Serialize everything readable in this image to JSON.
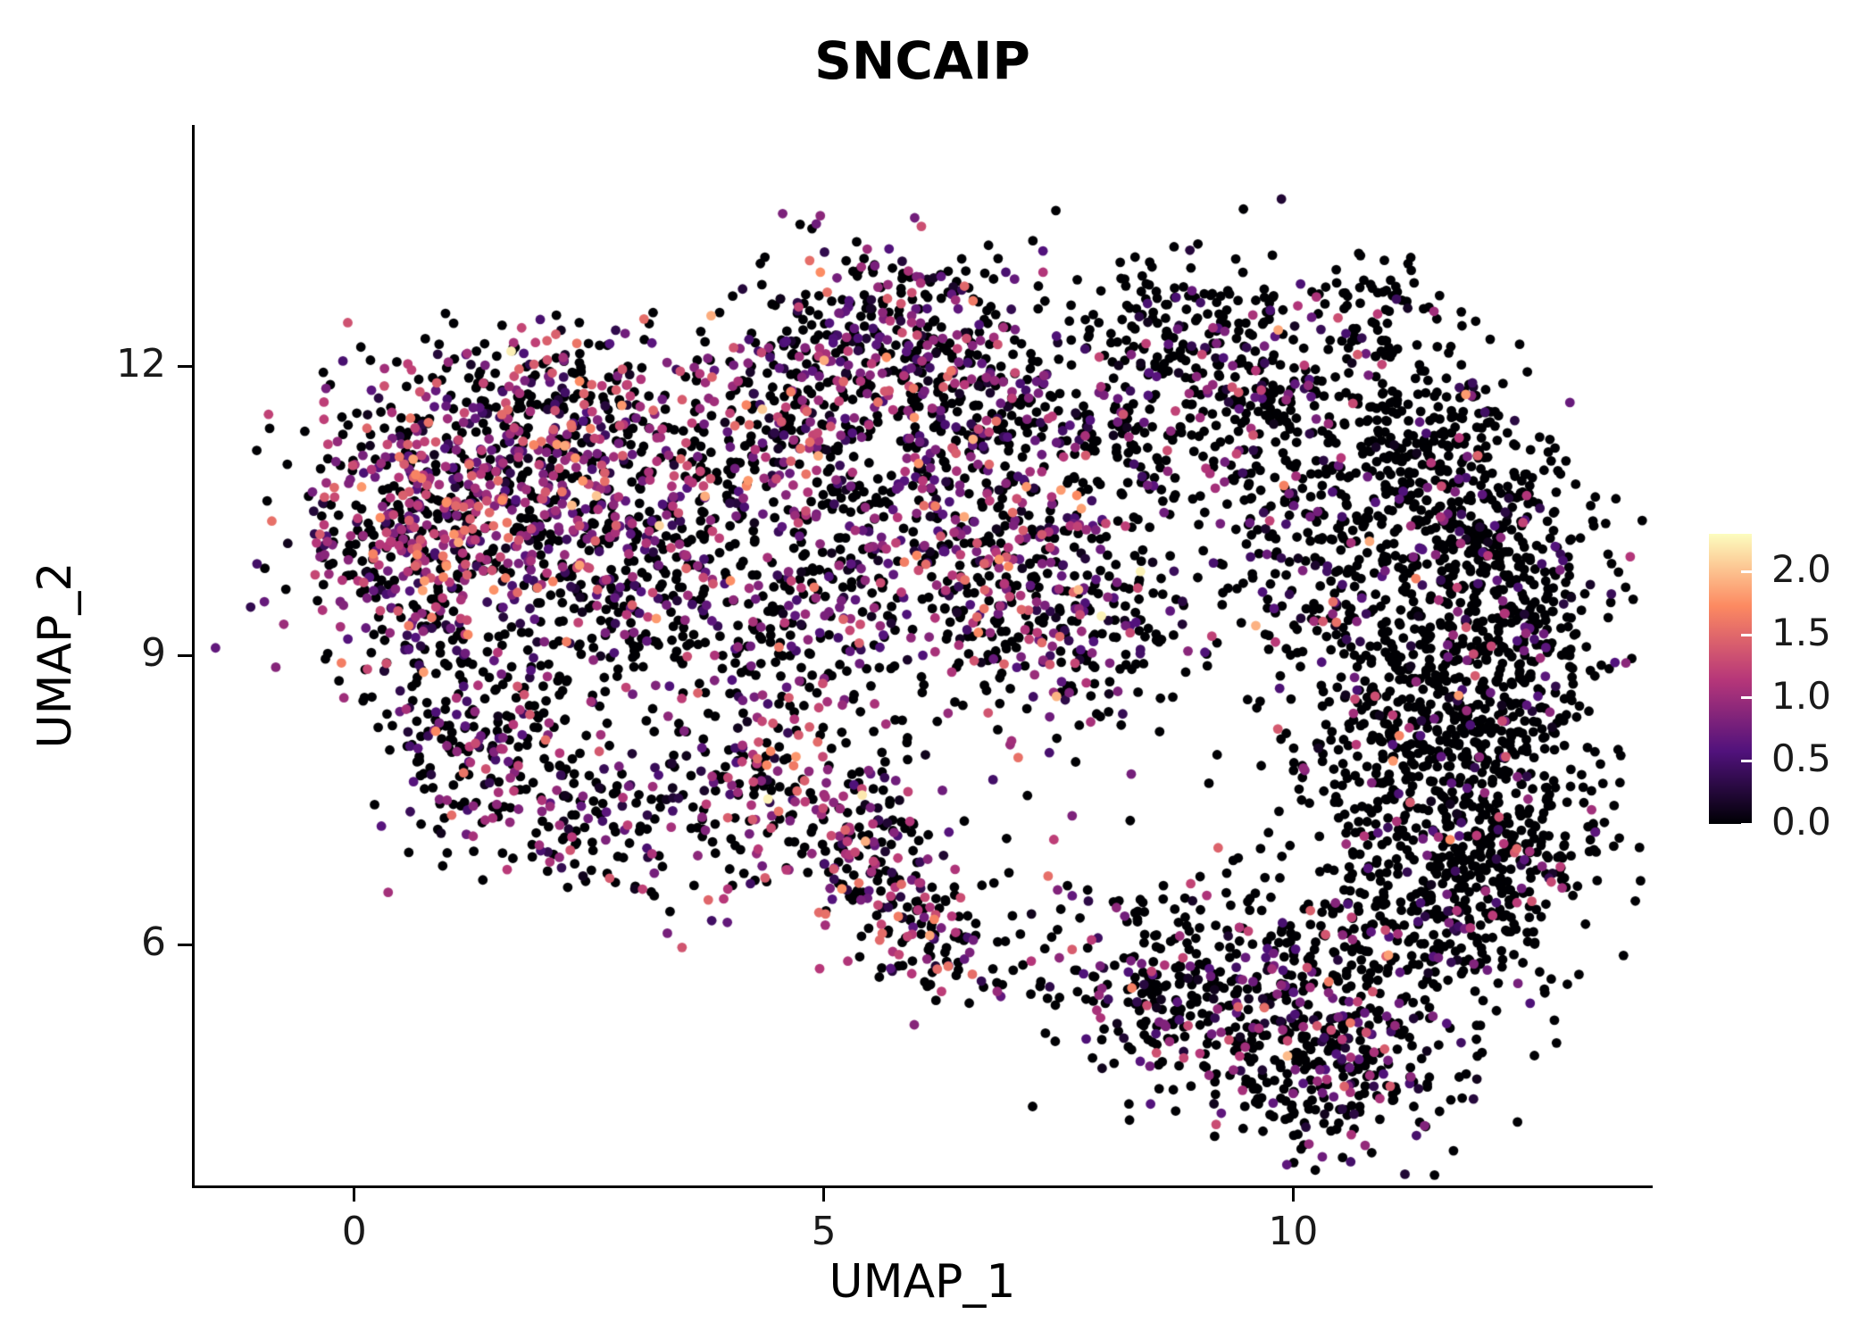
{
  "chart_data": {
    "type": "scatter",
    "title": "SNCAIP",
    "xlabel": "UMAP_1",
    "ylabel": "UMAP_2",
    "xlim": [
      -1.7,
      13.8
    ],
    "ylim": [
      3.5,
      14.5
    ],
    "x_ticks": [
      0,
      5,
      10
    ],
    "y_ticks": [
      6,
      9,
      12
    ],
    "grid": false,
    "legend_position": "right",
    "colorbar": {
      "ticks": [
        "0.0",
        "0.5",
        "1.0",
        "1.5",
        "2.0"
      ],
      "tick_values": [
        0.0,
        0.5,
        1.0,
        1.5,
        2.0
      ],
      "vmin": 0.0,
      "vmax": 2.3,
      "colormap": "magma",
      "stops": [
        {
          "t": 0.0,
          "color": "#000004"
        },
        {
          "t": 0.25,
          "color": "#51127c"
        },
        {
          "t": 0.5,
          "color": "#b73779"
        },
        {
          "t": 0.75,
          "color": "#fc8961"
        },
        {
          "t": 1.0,
          "color": "#fcfdbf"
        }
      ]
    },
    "point_color_zero": "#000004",
    "clusters": [
      {
        "cx": 0.35,
        "cy": 10.4,
        "sx": 0.55,
        "sy": 0.65,
        "n": 260,
        "f": 0.6,
        "m": 0.95,
        "s": 0.45
      },
      {
        "cx": 1.6,
        "cy": 10.9,
        "sx": 0.75,
        "sy": 0.6,
        "n": 340,
        "f": 0.6,
        "m": 0.95,
        "s": 0.45
      },
      {
        "cx": 2.6,
        "cy": 10.6,
        "sx": 0.6,
        "sy": 0.6,
        "n": 200,
        "f": 0.55,
        "m": 0.9,
        "s": 0.45
      },
      {
        "cx": 1.1,
        "cy": 9.9,
        "sx": 0.8,
        "sy": 0.45,
        "n": 180,
        "f": 0.55,
        "m": 0.9,
        "s": 0.45
      },
      {
        "cx": 1.9,
        "cy": 11.8,
        "sx": 0.7,
        "sy": 0.35,
        "n": 120,
        "f": 0.45,
        "m": 0.8,
        "s": 0.4
      },
      {
        "cx": 1.2,
        "cy": 8.6,
        "sx": 0.55,
        "sy": 0.45,
        "n": 110,
        "f": 0.3,
        "m": 0.7,
        "s": 0.4
      },
      {
        "cx": 1.5,
        "cy": 7.8,
        "sx": 0.55,
        "sy": 0.45,
        "n": 130,
        "f": 0.35,
        "m": 0.75,
        "s": 0.4
      },
      {
        "cx": 2.7,
        "cy": 7.35,
        "sx": 0.5,
        "sy": 0.4,
        "n": 120,
        "f": 0.45,
        "m": 0.8,
        "s": 0.45
      },
      {
        "cx": 2.3,
        "cy": 8.9,
        "sx": 0.8,
        "sy": 0.6,
        "n": 80,
        "f": 0.3,
        "m": 0.7,
        "s": 0.4
      },
      {
        "cx": 3.6,
        "cy": 10.9,
        "sx": 0.55,
        "sy": 0.6,
        "n": 140,
        "f": 0.5,
        "m": 0.85,
        "s": 0.45
      },
      {
        "cx": 3.3,
        "cy": 9.8,
        "sx": 0.6,
        "sy": 0.6,
        "n": 100,
        "f": 0.4,
        "m": 0.8,
        "s": 0.45
      },
      {
        "cx": 4.4,
        "cy": 7.5,
        "sx": 0.45,
        "sy": 0.6,
        "n": 150,
        "f": 0.5,
        "m": 0.95,
        "s": 0.5
      },
      {
        "cx": 5.4,
        "cy": 7.2,
        "sx": 0.3,
        "sy": 0.4,
        "n": 90,
        "f": 0.45,
        "m": 0.85,
        "s": 0.45
      },
      {
        "cx": 5.8,
        "cy": 6.5,
        "sx": 0.3,
        "sy": 0.4,
        "n": 80,
        "f": 0.45,
        "m": 0.85,
        "s": 0.45
      },
      {
        "cx": 6.3,
        "cy": 5.95,
        "sx": 0.35,
        "sy": 0.3,
        "n": 80,
        "f": 0.4,
        "m": 0.8,
        "s": 0.45
      },
      {
        "cx": 5.5,
        "cy": 12.3,
        "sx": 0.75,
        "sy": 0.5,
        "n": 320,
        "f": 0.45,
        "m": 0.85,
        "s": 0.45
      },
      {
        "cx": 6.5,
        "cy": 11.7,
        "sx": 0.5,
        "sy": 0.55,
        "n": 160,
        "f": 0.45,
        "m": 0.85,
        "s": 0.45
      },
      {
        "cx": 4.7,
        "cy": 11.4,
        "sx": 0.5,
        "sy": 0.5,
        "n": 130,
        "f": 0.45,
        "m": 0.8,
        "s": 0.45
      },
      {
        "cx": 5.3,
        "cy": 10.2,
        "sx": 0.9,
        "sy": 0.7,
        "n": 270,
        "f": 0.45,
        "m": 0.8,
        "s": 0.45
      },
      {
        "cx": 6.8,
        "cy": 9.9,
        "sx": 0.8,
        "sy": 0.6,
        "n": 240,
        "f": 0.5,
        "m": 0.85,
        "s": 0.45
      },
      {
        "cx": 7.8,
        "cy": 9.3,
        "sx": 0.6,
        "sy": 0.5,
        "n": 160,
        "f": 0.45,
        "m": 0.85,
        "s": 0.45
      },
      {
        "cx": 4.6,
        "cy": 9.3,
        "sx": 0.5,
        "sy": 0.4,
        "n": 70,
        "f": 0.35,
        "m": 0.75,
        "s": 0.4
      },
      {
        "cx": 8.8,
        "cy": 12.3,
        "sx": 0.8,
        "sy": 0.45,
        "n": 230,
        "f": 0.25,
        "m": 0.75,
        "s": 0.45
      },
      {
        "cx": 9.6,
        "cy": 11.6,
        "sx": 0.45,
        "sy": 0.5,
        "n": 130,
        "f": 0.3,
        "m": 0.75,
        "s": 0.45
      },
      {
        "cx": 8.2,
        "cy": 10.9,
        "sx": 0.6,
        "sy": 0.5,
        "n": 100,
        "f": 0.2,
        "m": 0.7,
        "s": 0.4
      },
      {
        "cx": 9.9,
        "cy": 10.4,
        "sx": 0.6,
        "sy": 0.7,
        "n": 110,
        "f": 0.2,
        "m": 0.7,
        "s": 0.4
      },
      {
        "cx": 11.3,
        "cy": 11.2,
        "sx": 0.6,
        "sy": 0.6,
        "n": 260,
        "f": 0.12,
        "m": 0.7,
        "s": 0.4
      },
      {
        "cx": 12.0,
        "cy": 10.2,
        "sx": 0.6,
        "sy": 0.6,
        "n": 280,
        "f": 0.12,
        "m": 0.7,
        "s": 0.4
      },
      {
        "cx": 12.2,
        "cy": 9.0,
        "sx": 0.6,
        "sy": 0.7,
        "n": 330,
        "f": 0.14,
        "m": 0.7,
        "s": 0.4
      },
      {
        "cx": 11.5,
        "cy": 8.0,
        "sx": 0.8,
        "sy": 0.7,
        "n": 380,
        "f": 0.15,
        "m": 0.7,
        "s": 0.4
      },
      {
        "cx": 12.2,
        "cy": 7.0,
        "sx": 0.6,
        "sy": 0.6,
        "n": 260,
        "f": 0.12,
        "m": 0.7,
        "s": 0.4
      },
      {
        "cx": 11.3,
        "cy": 6.2,
        "sx": 0.7,
        "sy": 0.6,
        "n": 260,
        "f": 0.15,
        "m": 0.7,
        "s": 0.4
      },
      {
        "cx": 10.6,
        "cy": 9.4,
        "sx": 0.5,
        "sy": 0.8,
        "n": 150,
        "f": 0.15,
        "m": 0.7,
        "s": 0.4
      },
      {
        "cx": 9.7,
        "cy": 5.3,
        "sx": 0.8,
        "sy": 0.6,
        "n": 320,
        "f": 0.3,
        "m": 0.75,
        "s": 0.45
      },
      {
        "cx": 10.6,
        "cy": 4.7,
        "sx": 0.6,
        "sy": 0.45,
        "n": 190,
        "f": 0.25,
        "m": 0.75,
        "s": 0.45
      },
      {
        "cx": 8.6,
        "cy": 5.6,
        "sx": 0.45,
        "sy": 0.45,
        "n": 110,
        "f": 0.3,
        "m": 0.75,
        "s": 0.45
      },
      {
        "cx": 6.4,
        "cy": 8.6,
        "sx": 1.2,
        "sy": 0.9,
        "n": 90,
        "f": 0.35,
        "m": 0.8,
        "s": 0.45
      },
      {
        "cx": 3.9,
        "cy": 8.6,
        "sx": 0.8,
        "sy": 0.8,
        "n": 70,
        "f": 0.3,
        "m": 0.75,
        "s": 0.4
      },
      {
        "cx": 8.0,
        "cy": 5.8,
        "sx": 0.5,
        "sy": 0.5,
        "n": 50,
        "f": 0.3,
        "m": 0.75,
        "s": 0.45
      },
      {
        "cx": 10.9,
        "cy": 12.5,
        "sx": 0.35,
        "sy": 0.3,
        "n": 60,
        "f": 0.15,
        "m": 0.7,
        "s": 0.4
      },
      {
        "cx": 7.3,
        "cy": 11.2,
        "sx": 0.6,
        "sy": 0.55,
        "n": 90,
        "f": 0.3,
        "m": 0.75,
        "s": 0.4
      }
    ]
  }
}
